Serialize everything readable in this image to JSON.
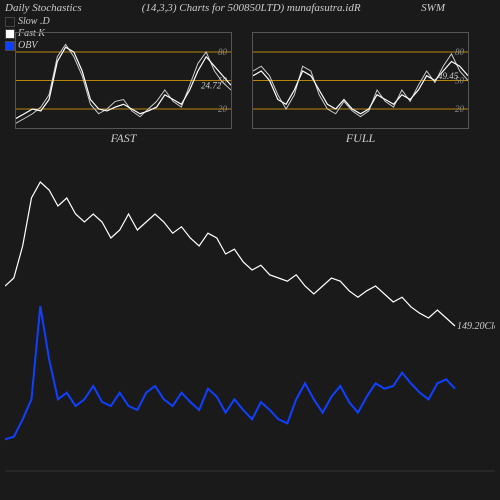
{
  "header": {
    "title": "Daily Stochastics",
    "params": "(14,3,3) Charts for 500850LTD) munafasutra.idR",
    "right": "SWM"
  },
  "legend": {
    "slowd": "Slow .D",
    "fastk": "Fast K",
    "obv": "OBV"
  },
  "mini_fast": {
    "title": "FAST",
    "ylim": [
      0,
      100
    ],
    "yticks": [
      20,
      50,
      80
    ],
    "gridline_color": "#b8860b",
    "border_color": "#555",
    "last_value": "24.72",
    "series_a_color": "#ffffff",
    "series_b_color": "#cccccc",
    "series_a": [
      10,
      15,
      20,
      18,
      30,
      70,
      85,
      80,
      60,
      30,
      20,
      18,
      22,
      25,
      20,
      15,
      18,
      22,
      35,
      30,
      25,
      40,
      60,
      75,
      65,
      55,
      45
    ],
    "series_b": [
      5,
      10,
      15,
      22,
      35,
      75,
      88,
      75,
      55,
      25,
      15,
      20,
      28,
      30,
      18,
      12,
      20,
      28,
      40,
      28,
      22,
      45,
      68,
      80,
      60,
      48,
      40
    ]
  },
  "mini_full": {
    "title": "FULL",
    "ylim": [
      0,
      100
    ],
    "yticks": [
      20,
      50,
      80
    ],
    "gridline_color": "#b8860b",
    "border_color": "#555",
    "last_value": "49.45",
    "series_a_color": "#ffffff",
    "series_b_color": "#cccccc",
    "series_a": [
      55,
      60,
      50,
      30,
      25,
      40,
      60,
      55,
      40,
      25,
      20,
      30,
      20,
      15,
      20,
      35,
      30,
      25,
      35,
      30,
      40,
      55,
      50,
      60,
      70,
      65,
      55
    ],
    "series_b": [
      60,
      65,
      55,
      35,
      20,
      35,
      65,
      60,
      35,
      20,
      15,
      28,
      18,
      12,
      18,
      40,
      28,
      22,
      40,
      28,
      45,
      60,
      48,
      65,
      78,
      60,
      50
    ]
  },
  "main": {
    "close_label": "149.20Close",
    "price_color": "#ffffff",
    "obv_color": "#1040ff",
    "baseline_color": "#333",
    "price": [
      115,
      120,
      140,
      170,
      180,
      175,
      165,
      170,
      160,
      155,
      160,
      155,
      145,
      150,
      160,
      150,
      155,
      160,
      155,
      148,
      152,
      145,
      140,
      148,
      145,
      135,
      138,
      130,
      125,
      128,
      122,
      120,
      118,
      122,
      115,
      110,
      115,
      120,
      118,
      112,
      108,
      112,
      115,
      110,
      105,
      108,
      102,
      98,
      95,
      100,
      95,
      90
    ],
    "obv": [
      20,
      22,
      35,
      50,
      120,
      80,
      50,
      55,
      45,
      50,
      60,
      48,
      45,
      55,
      45,
      42,
      55,
      60,
      50,
      45,
      55,
      48,
      42,
      58,
      52,
      40,
      50,
      42,
      35,
      48,
      42,
      35,
      32,
      50,
      62,
      50,
      40,
      52,
      60,
      48,
      40,
      52,
      62,
      58,
      60,
      70,
      62,
      55,
      50,
      62,
      65,
      58
    ]
  }
}
